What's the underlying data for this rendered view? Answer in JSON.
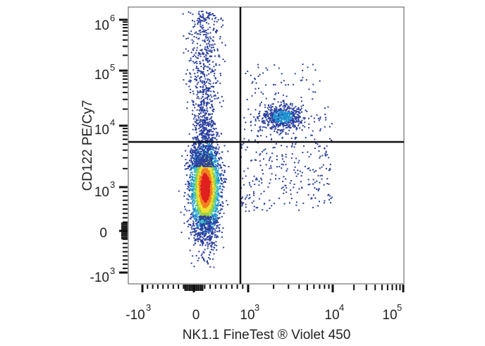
{
  "chart_data": {
    "type": "scatter",
    "subtype": "flow cytometry density dot plot",
    "xlabel": "NK1.1  FineTest ® Violet 450",
    "ylabel": "CD122 PE/Cy7",
    "x_scale": "biexponential",
    "y_scale": "biexponential",
    "xlim": [
      -1500,
      100000
    ],
    "ylim": [
      -2000,
      1500000
    ],
    "x_ticks": [
      {
        "base": "-10",
        "exp": "3",
        "value": -1000
      },
      {
        "base": "0",
        "exp": "",
        "value": 0
      },
      {
        "base": "10",
        "exp": "3",
        "value": 1000
      },
      {
        "base": "10",
        "exp": "4",
        "value": 10000
      },
      {
        "base": "10",
        "exp": "5",
        "value": 100000
      }
    ],
    "y_ticks": [
      {
        "base": "-10",
        "exp": "3",
        "value": -1000
      },
      {
        "base": "0",
        "exp": "",
        "value": 0
      },
      {
        "base": "10",
        "exp": "3",
        "value": 1000
      },
      {
        "base": "10",
        "exp": "4",
        "value": 10000
      },
      {
        "base": "10",
        "exp": "5",
        "value": 100000
      },
      {
        "base": "10",
        "exp": "6",
        "value": 1000000
      }
    ],
    "gates": {
      "x": 700,
      "y": 5500
    },
    "populations": [
      {
        "center_x": 200,
        "center_y": 1000,
        "relative_size": "major"
      },
      {
        "center_x": 200,
        "center_y": 30000,
        "relative_size": "tail"
      },
      {
        "center_x": 2500,
        "center_y": 15000,
        "relative_size": "minor"
      }
    ],
    "density_colors": [
      "#2b3fa0",
      "#1e90d0",
      "#3cc0c0",
      "#9bd040",
      "#f0e030",
      "#f08020",
      "#e02020"
    ],
    "grid": false,
    "legend": "none"
  }
}
